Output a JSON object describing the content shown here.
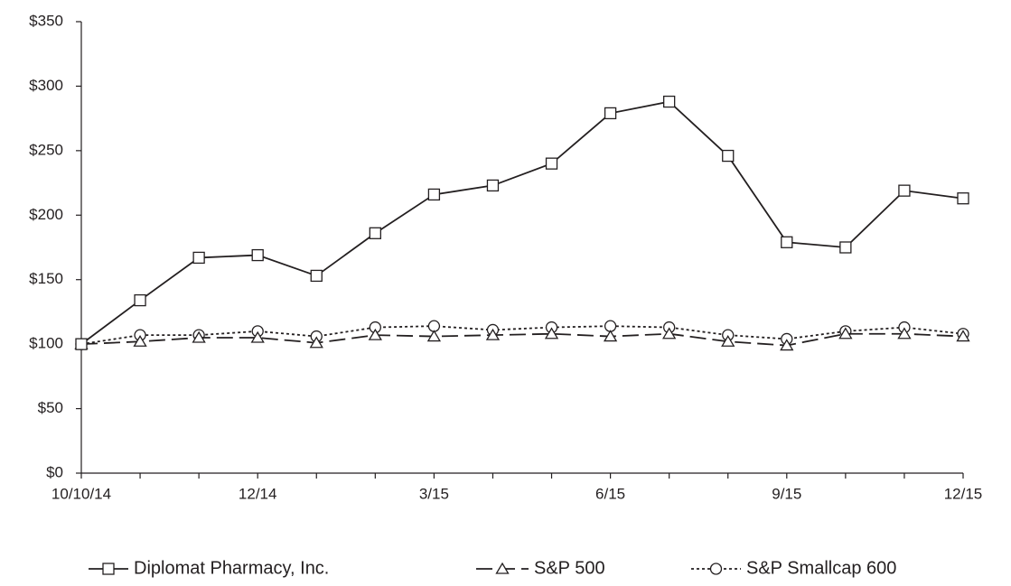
{
  "chart_data": {
    "type": "line",
    "categories": [
      "10/10/14",
      null,
      null,
      "12/14",
      null,
      null,
      "3/15",
      null,
      null,
      "6/15",
      null,
      null,
      "9/15",
      null,
      null,
      "12/15"
    ],
    "series": [
      {
        "name": "Diplomat Pharmacy, Inc.",
        "color": "#231f20",
        "dash": "solid",
        "marker": "square",
        "values": [
          100,
          134,
          167,
          169,
          153,
          186,
          216,
          223,
          240,
          279,
          288,
          246,
          179,
          175,
          219,
          213
        ]
      },
      {
        "name": "S&P 500",
        "color": "#231f20",
        "dash": "dashed",
        "marker": "triangle",
        "values": [
          100,
          102,
          105,
          105,
          101,
          107,
          106,
          107,
          108,
          106,
          108,
          102,
          99,
          108,
          108,
          106
        ]
      },
      {
        "name": "S&P Smallcap 600",
        "color": "#231f20",
        "dash": "dotted",
        "marker": "circle",
        "values": [
          100,
          107,
          107,
          110,
          106,
          113,
          114,
          111,
          113,
          114,
          113,
          107,
          104,
          110,
          113,
          108
        ]
      }
    ],
    "ylim": [
      0,
      350
    ],
    "yticks": [
      {
        "value": 0,
        "label": "$0"
      },
      {
        "value": 50,
        "label": "$50"
      },
      {
        "value": 100,
        "label": "$100"
      },
      {
        "value": 150,
        "label": "$150"
      },
      {
        "value": 200,
        "label": "$200"
      },
      {
        "value": 250,
        "label": "$250"
      },
      {
        "value": 300,
        "label": "$300"
      },
      {
        "value": 350,
        "label": "$350"
      }
    ],
    "grid": false,
    "legend": "bottom"
  }
}
